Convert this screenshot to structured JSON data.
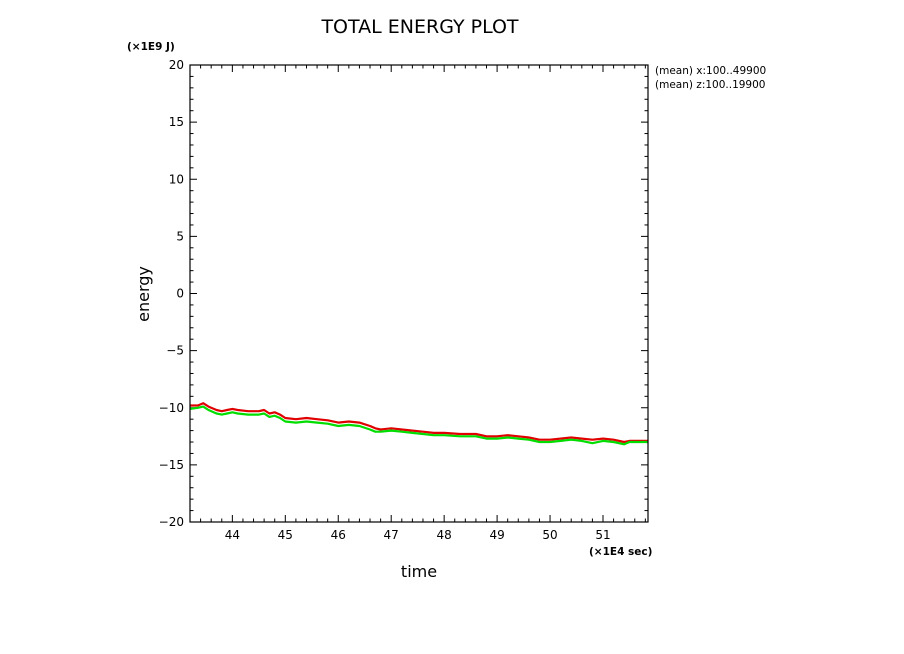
{
  "chart_data": {
    "type": "line",
    "title": "TOTAL ENERGY PLOT",
    "xlabel": "time",
    "ylabel": "energy",
    "x_unit": "(×1E4 sec)",
    "y_unit": "(×1E9 J)",
    "xlim": [
      43.2,
      51.85
    ],
    "ylim": [
      -20,
      20
    ],
    "x_ticks": [
      44,
      45,
      46,
      47,
      48,
      49,
      50,
      51
    ],
    "y_ticks": [
      20,
      15,
      10,
      5,
      0,
      -5,
      -10,
      -15,
      -20
    ],
    "y_tick_labels": [
      "20",
      "15",
      "10",
      "5",
      "0",
      "−5",
      "−10",
      "−15",
      "−20"
    ],
    "annotations": [
      "(mean) x:100..49900",
      "(mean) z:100..19900"
    ],
    "grid": false,
    "series": [
      {
        "color": "#e00000",
        "x": [
          43.2,
          43.35,
          43.45,
          43.55,
          43.7,
          43.8,
          43.9,
          44.0,
          44.1,
          44.3,
          44.5,
          44.6,
          44.7,
          44.8,
          44.9,
          45.0,
          45.2,
          45.4,
          45.6,
          45.8,
          46.0,
          46.2,
          46.4,
          46.6,
          46.7,
          46.8,
          47.0,
          47.2,
          47.4,
          47.6,
          47.8,
          48.0,
          48.3,
          48.6,
          48.8,
          49.0,
          49.2,
          49.4,
          49.6,
          49.8,
          50.0,
          50.2,
          50.4,
          50.6,
          50.8,
          51.0,
          51.2,
          51.4,
          51.5,
          51.6,
          51.85
        ],
        "y": [
          -9.8,
          -9.8,
          -9.6,
          -9.9,
          -10.2,
          -10.3,
          -10.2,
          -10.1,
          -10.2,
          -10.3,
          -10.3,
          -10.2,
          -10.5,
          -10.4,
          -10.6,
          -10.9,
          -11.0,
          -10.9,
          -11.0,
          -11.1,
          -11.3,
          -11.2,
          -11.3,
          -11.6,
          -11.8,
          -11.9,
          -11.8,
          -11.9,
          -12.0,
          -12.1,
          -12.2,
          -12.2,
          -12.3,
          -12.3,
          -12.5,
          -12.5,
          -12.4,
          -12.5,
          -12.6,
          -12.8,
          -12.8,
          -12.7,
          -12.6,
          -12.7,
          -12.8,
          -12.7,
          -12.8,
          -13.0,
          -12.9,
          -12.9,
          -12.9
        ]
      },
      {
        "color": "#00dd00",
        "x": [
          43.2,
          43.35,
          43.45,
          43.55,
          43.7,
          43.8,
          43.9,
          44.0,
          44.1,
          44.3,
          44.5,
          44.6,
          44.7,
          44.8,
          44.9,
          45.0,
          45.2,
          45.4,
          45.6,
          45.8,
          46.0,
          46.2,
          46.4,
          46.6,
          46.7,
          46.8,
          47.0,
          47.2,
          47.4,
          47.6,
          47.8,
          48.0,
          48.3,
          48.6,
          48.8,
          49.0,
          49.2,
          49.4,
          49.6,
          49.8,
          50.0,
          50.2,
          50.4,
          50.6,
          50.8,
          51.0,
          51.2,
          51.4,
          51.5,
          51.6,
          51.85
        ],
        "y": [
          -10.1,
          -10.0,
          -9.9,
          -10.2,
          -10.5,
          -10.6,
          -10.5,
          -10.4,
          -10.5,
          -10.6,
          -10.6,
          -10.5,
          -10.8,
          -10.7,
          -10.9,
          -11.2,
          -11.3,
          -11.2,
          -11.3,
          -11.4,
          -11.6,
          -11.5,
          -11.6,
          -11.9,
          -12.1,
          -12.1,
          -12.0,
          -12.1,
          -12.2,
          -12.3,
          -12.4,
          -12.4,
          -12.5,
          -12.5,
          -12.7,
          -12.7,
          -12.6,
          -12.7,
          -12.8,
          -13.0,
          -13.0,
          -12.9,
          -12.8,
          -12.9,
          -13.1,
          -12.9,
          -13.0,
          -13.2,
          -13.0,
          -13.0,
          -13.0
        ]
      }
    ]
  }
}
